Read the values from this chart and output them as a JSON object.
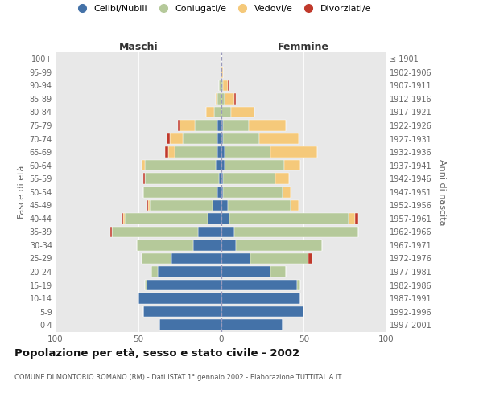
{
  "age_groups": [
    "0-4",
    "5-9",
    "10-14",
    "15-19",
    "20-24",
    "25-29",
    "30-34",
    "35-39",
    "40-44",
    "45-49",
    "50-54",
    "55-59",
    "60-64",
    "65-69",
    "70-74",
    "75-79",
    "80-84",
    "85-89",
    "90-94",
    "95-99",
    "100+"
  ],
  "birth_years": [
    "1997-2001",
    "1992-1996",
    "1987-1991",
    "1982-1986",
    "1977-1981",
    "1972-1976",
    "1967-1971",
    "1962-1966",
    "1957-1961",
    "1952-1956",
    "1947-1951",
    "1942-1946",
    "1937-1941",
    "1932-1936",
    "1927-1931",
    "1922-1926",
    "1917-1921",
    "1912-1916",
    "1907-1911",
    "1902-1906",
    "≤ 1901"
  ],
  "colors": {
    "celibe": "#4472a8",
    "coniugato": "#b5c99a",
    "vedovo": "#f5c97a",
    "divorziato": "#c0392b"
  },
  "maschi": {
    "celibe": [
      37,
      47,
      50,
      45,
      38,
      30,
      17,
      14,
      8,
      5,
      2,
      1,
      3,
      2,
      2,
      2,
      0,
      0,
      0,
      0,
      0
    ],
    "coniugato": [
      0,
      0,
      0,
      1,
      4,
      18,
      34,
      52,
      50,
      38,
      45,
      45,
      43,
      26,
      21,
      14,
      4,
      2,
      1,
      0,
      0
    ],
    "vedovo": [
      0,
      0,
      0,
      0,
      0,
      0,
      0,
      0,
      1,
      1,
      0,
      0,
      2,
      4,
      8,
      9,
      5,
      1,
      0,
      0,
      0
    ],
    "divorziato": [
      0,
      0,
      0,
      0,
      0,
      0,
      0,
      1,
      1,
      1,
      0,
      1,
      0,
      2,
      2,
      1,
      0,
      0,
      0,
      0,
      0
    ]
  },
  "femmine": {
    "nubile": [
      37,
      50,
      48,
      46,
      30,
      18,
      9,
      8,
      5,
      4,
      1,
      1,
      2,
      2,
      1,
      1,
      0,
      0,
      0,
      0,
      0
    ],
    "coniugata": [
      0,
      0,
      0,
      2,
      9,
      35,
      52,
      75,
      72,
      38,
      36,
      32,
      36,
      28,
      22,
      16,
      6,
      2,
      1,
      0,
      0
    ],
    "vedova": [
      0,
      0,
      0,
      0,
      0,
      0,
      0,
      0,
      4,
      5,
      5,
      8,
      10,
      28,
      24,
      22,
      14,
      6,
      3,
      1,
      0
    ],
    "divorziata": [
      0,
      0,
      0,
      0,
      0,
      2,
      0,
      0,
      2,
      0,
      0,
      0,
      0,
      0,
      0,
      0,
      0,
      1,
      1,
      0,
      0
    ]
  },
  "xlim": 100,
  "title": "Popolazione per età, sesso e stato civile - 2002",
  "subtitle": "COMUNE DI MONTORIO ROMANO (RM) - Dati ISTAT 1° gennaio 2002 - Elaborazione TUTTITALIA.IT",
  "ylabel_left": "Fasce di età",
  "ylabel_right": "Anni di nascita",
  "maschi_label": "Maschi",
  "femmine_label": "Femmine",
  "legend_labels": [
    "Celibi/Nubili",
    "Coniugati/e",
    "Vedovi/e",
    "Divorziati/e"
  ],
  "bg_color": "#ffffff",
  "plot_bg": "#e8e8e8",
  "bar_height": 0.82
}
